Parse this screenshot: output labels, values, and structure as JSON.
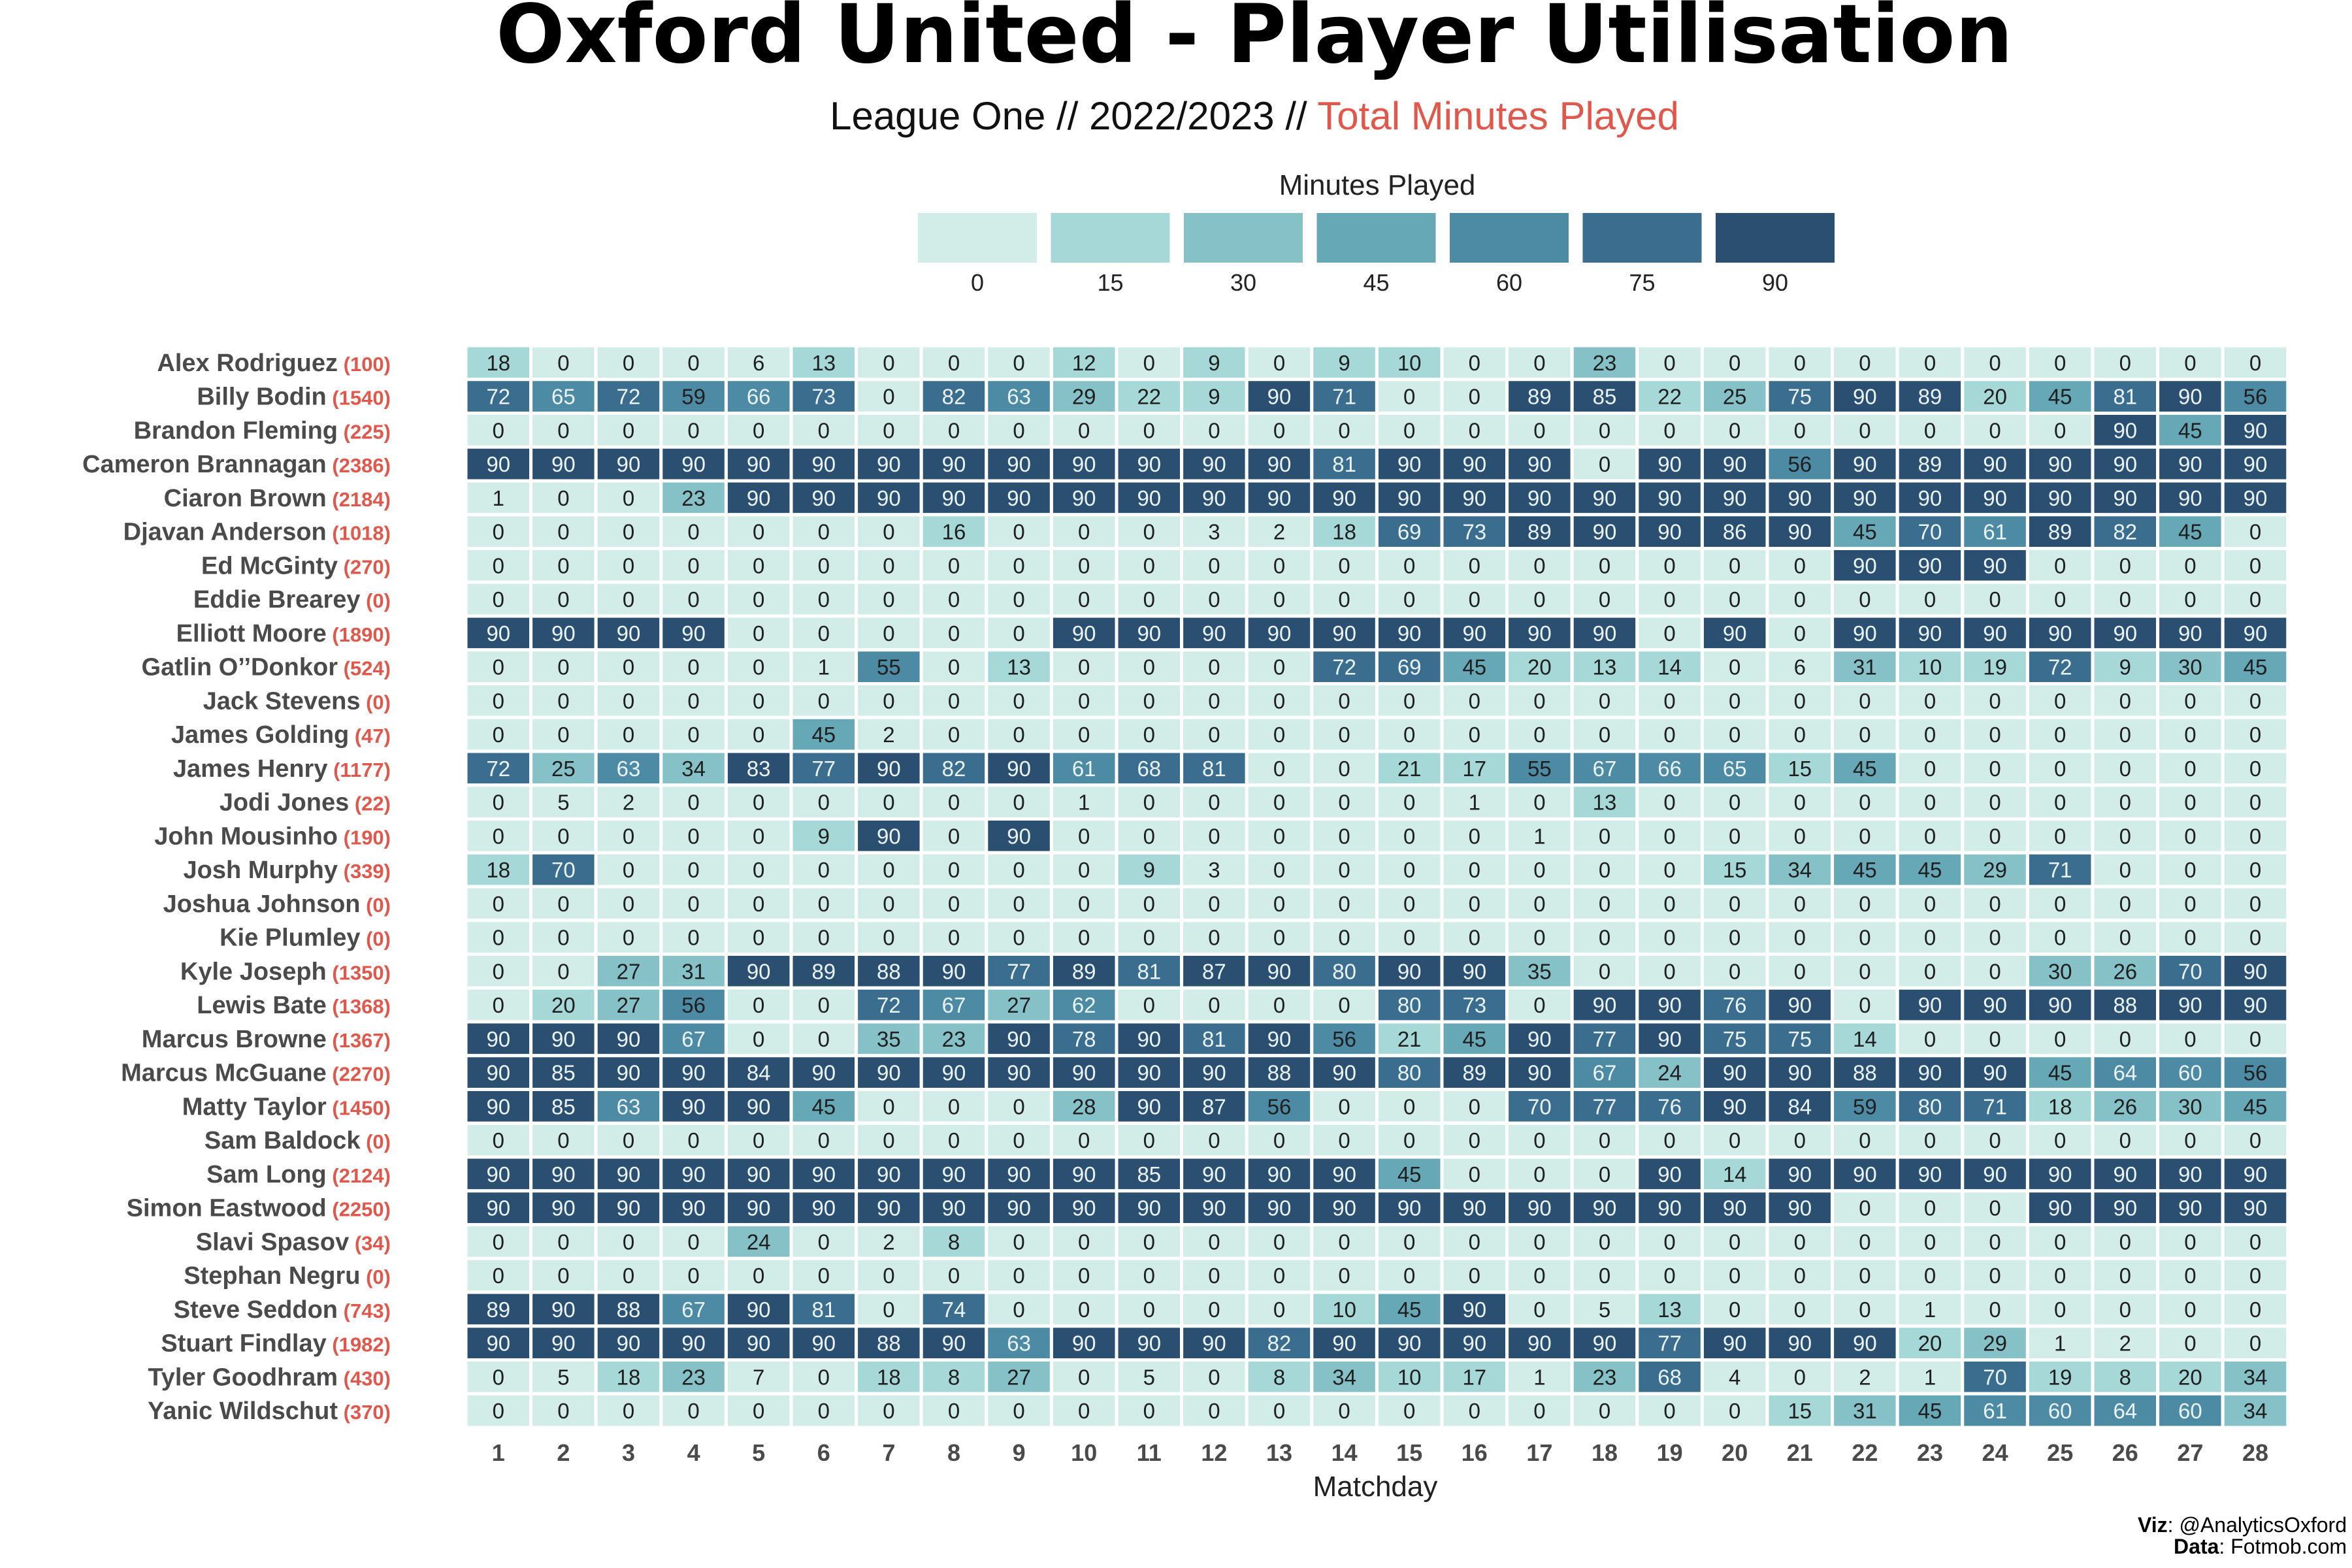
{
  "chart_data": {
    "type": "heatmap",
    "title": "Oxford United - Player Utilisation",
    "subtitle_main": "League One // 2022/2023 // ",
    "subtitle_highlight": "Total Minutes Played",
    "xlabel": "Matchday",
    "legend": {
      "title": "Minutes Played",
      "levels": [
        0,
        15,
        30,
        45,
        60,
        75,
        90
      ],
      "colors": [
        "#d2ece8",
        "#a7d8d8",
        "#86c1c8",
        "#67a8b7",
        "#4d8aa4",
        "#3a6d8e",
        "#2b4f70"
      ]
    },
    "x": [
      1,
      2,
      3,
      4,
      5,
      6,
      7,
      8,
      9,
      10,
      11,
      12,
      13,
      14,
      15,
      16,
      17,
      18,
      19,
      20,
      21,
      22,
      23,
      24,
      25,
      26,
      27,
      28
    ],
    "players": [
      {
        "name": "Alex Rodriguez",
        "total": "(100)",
        "minutes": [
          18,
          0,
          0,
          0,
          6,
          13,
          0,
          0,
          0,
          12,
          0,
          9,
          0,
          9,
          10,
          0,
          0,
          23,
          0,
          0,
          0,
          0,
          0,
          0,
          0,
          0,
          0,
          0
        ]
      },
      {
        "name": "Billy Bodin",
        "total": "(1540)",
        "minutes": [
          72,
          65,
          72,
          59,
          66,
          73,
          0,
          82,
          63,
          29,
          22,
          9,
          90,
          71,
          0,
          0,
          89,
          85,
          22,
          25,
          75,
          90,
          89,
          20,
          45,
          81,
          90,
          56
        ]
      },
      {
        "name": "Brandon Fleming",
        "total": "(225)",
        "minutes": [
          0,
          0,
          0,
          0,
          0,
          0,
          0,
          0,
          0,
          0,
          0,
          0,
          0,
          0,
          0,
          0,
          0,
          0,
          0,
          0,
          0,
          0,
          0,
          0,
          0,
          90,
          45,
          90
        ]
      },
      {
        "name": "Cameron Brannagan",
        "total": "(2386)",
        "minutes": [
          90,
          90,
          90,
          90,
          90,
          90,
          90,
          90,
          90,
          90,
          90,
          90,
          90,
          81,
          90,
          90,
          90,
          0,
          90,
          90,
          56,
          90,
          89,
          90,
          90,
          90,
          90,
          90
        ]
      },
      {
        "name": "Ciaron Brown",
        "total": "(2184)",
        "minutes": [
          1,
          0,
          0,
          23,
          90,
          90,
          90,
          90,
          90,
          90,
          90,
          90,
          90,
          90,
          90,
          90,
          90,
          90,
          90,
          90,
          90,
          90,
          90,
          90,
          90,
          90,
          90,
          90
        ]
      },
      {
        "name": "Djavan Anderson",
        "total": "(1018)",
        "minutes": [
          0,
          0,
          0,
          0,
          0,
          0,
          0,
          16,
          0,
          0,
          0,
          3,
          2,
          18,
          69,
          73,
          89,
          90,
          90,
          86,
          90,
          45,
          70,
          61,
          89,
          82,
          45,
          0
        ]
      },
      {
        "name": "Ed McGinty",
        "total": "(270)",
        "minutes": [
          0,
          0,
          0,
          0,
          0,
          0,
          0,
          0,
          0,
          0,
          0,
          0,
          0,
          0,
          0,
          0,
          0,
          0,
          0,
          0,
          0,
          90,
          90,
          90,
          0,
          0,
          0,
          0
        ]
      },
      {
        "name": "Eddie Brearey",
        "total": "(0)",
        "minutes": [
          0,
          0,
          0,
          0,
          0,
          0,
          0,
          0,
          0,
          0,
          0,
          0,
          0,
          0,
          0,
          0,
          0,
          0,
          0,
          0,
          0,
          0,
          0,
          0,
          0,
          0,
          0,
          0
        ]
      },
      {
        "name": "Elliott Moore",
        "total": "(1890)",
        "minutes": [
          90,
          90,
          90,
          90,
          0,
          0,
          0,
          0,
          0,
          90,
          90,
          90,
          90,
          90,
          90,
          90,
          90,
          90,
          0,
          90,
          0,
          90,
          90,
          90,
          90,
          90,
          90,
          90
        ]
      },
      {
        "name": "Gatlin O’’Donkor",
        "total": "(524)",
        "minutes": [
          0,
          0,
          0,
          0,
          0,
          1,
          55,
          0,
          13,
          0,
          0,
          0,
          0,
          72,
          69,
          45,
          20,
          13,
          14,
          0,
          6,
          31,
          10,
          19,
          72,
          9,
          30,
          45
        ]
      },
      {
        "name": "Jack Stevens",
        "total": "(0)",
        "minutes": [
          0,
          0,
          0,
          0,
          0,
          0,
          0,
          0,
          0,
          0,
          0,
          0,
          0,
          0,
          0,
          0,
          0,
          0,
          0,
          0,
          0,
          0,
          0,
          0,
          0,
          0,
          0,
          0
        ]
      },
      {
        "name": "James Golding",
        "total": "(47)",
        "minutes": [
          0,
          0,
          0,
          0,
          0,
          45,
          2,
          0,
          0,
          0,
          0,
          0,
          0,
          0,
          0,
          0,
          0,
          0,
          0,
          0,
          0,
          0,
          0,
          0,
          0,
          0,
          0,
          0
        ]
      },
      {
        "name": "James Henry",
        "total": "(1177)",
        "minutes": [
          72,
          25,
          63,
          34,
          83,
          77,
          90,
          82,
          90,
          61,
          68,
          81,
          0,
          0,
          21,
          17,
          55,
          67,
          66,
          65,
          15,
          45,
          0,
          0,
          0,
          0,
          0,
          0
        ]
      },
      {
        "name": "Jodi Jones",
        "total": "(22)",
        "minutes": [
          0,
          5,
          2,
          0,
          0,
          0,
          0,
          0,
          0,
          1,
          0,
          0,
          0,
          0,
          0,
          1,
          0,
          13,
          0,
          0,
          0,
          0,
          0,
          0,
          0,
          0,
          0,
          0
        ]
      },
      {
        "name": "John Mousinho",
        "total": "(190)",
        "minutes": [
          0,
          0,
          0,
          0,
          0,
          9,
          90,
          0,
          90,
          0,
          0,
          0,
          0,
          0,
          0,
          0,
          1,
          0,
          0,
          0,
          0,
          0,
          0,
          0,
          0,
          0,
          0,
          0
        ]
      },
      {
        "name": "Josh Murphy",
        "total": "(339)",
        "minutes": [
          18,
          70,
          0,
          0,
          0,
          0,
          0,
          0,
          0,
          0,
          9,
          3,
          0,
          0,
          0,
          0,
          0,
          0,
          0,
          15,
          34,
          45,
          45,
          29,
          71,
          0,
          0,
          0
        ]
      },
      {
        "name": "Joshua Johnson",
        "total": "(0)",
        "minutes": [
          0,
          0,
          0,
          0,
          0,
          0,
          0,
          0,
          0,
          0,
          0,
          0,
          0,
          0,
          0,
          0,
          0,
          0,
          0,
          0,
          0,
          0,
          0,
          0,
          0,
          0,
          0,
          0
        ]
      },
      {
        "name": "Kie Plumley",
        "total": "(0)",
        "minutes": [
          0,
          0,
          0,
          0,
          0,
          0,
          0,
          0,
          0,
          0,
          0,
          0,
          0,
          0,
          0,
          0,
          0,
          0,
          0,
          0,
          0,
          0,
          0,
          0,
          0,
          0,
          0,
          0
        ]
      },
      {
        "name": "Kyle Joseph",
        "total": "(1350)",
        "minutes": [
          0,
          0,
          27,
          31,
          90,
          89,
          88,
          90,
          77,
          89,
          81,
          87,
          90,
          80,
          90,
          90,
          35,
          0,
          0,
          0,
          0,
          0,
          0,
          0,
          30,
          26,
          70,
          90
        ]
      },
      {
        "name": "Lewis Bate",
        "total": "(1368)",
        "minutes": [
          0,
          20,
          27,
          56,
          0,
          0,
          72,
          67,
          27,
          62,
          0,
          0,
          0,
          0,
          80,
          73,
          0,
          90,
          90,
          76,
          90,
          0,
          90,
          90,
          90,
          88,
          90,
          90
        ]
      },
      {
        "name": "Marcus Browne",
        "total": "(1367)",
        "minutes": [
          90,
          90,
          90,
          67,
          0,
          0,
          35,
          23,
          90,
          78,
          90,
          81,
          90,
          56,
          21,
          45,
          90,
          77,
          90,
          75,
          75,
          14,
          0,
          0,
          0,
          0,
          0,
          0
        ]
      },
      {
        "name": "Marcus McGuane",
        "total": "(2270)",
        "minutes": [
          90,
          85,
          90,
          90,
          84,
          90,
          90,
          90,
          90,
          90,
          90,
          90,
          88,
          90,
          80,
          89,
          90,
          67,
          24,
          90,
          90,
          88,
          90,
          90,
          45,
          64,
          60,
          56
        ]
      },
      {
        "name": "Matty Taylor",
        "total": "(1450)",
        "minutes": [
          90,
          85,
          63,
          90,
          90,
          45,
          0,
          0,
          0,
          28,
          90,
          87,
          56,
          0,
          0,
          0,
          70,
          77,
          76,
          90,
          84,
          59,
          80,
          71,
          18,
          26,
          30,
          45
        ]
      },
      {
        "name": "Sam Baldock",
        "total": "(0)",
        "minutes": [
          0,
          0,
          0,
          0,
          0,
          0,
          0,
          0,
          0,
          0,
          0,
          0,
          0,
          0,
          0,
          0,
          0,
          0,
          0,
          0,
          0,
          0,
          0,
          0,
          0,
          0,
          0,
          0
        ]
      },
      {
        "name": "Sam Long",
        "total": "(2124)",
        "minutes": [
          90,
          90,
          90,
          90,
          90,
          90,
          90,
          90,
          90,
          90,
          85,
          90,
          90,
          90,
          45,
          0,
          0,
          0,
          90,
          14,
          90,
          90,
          90,
          90,
          90,
          90,
          90,
          90
        ]
      },
      {
        "name": "Simon Eastwood",
        "total": "(2250)",
        "minutes": [
          90,
          90,
          90,
          90,
          90,
          90,
          90,
          90,
          90,
          90,
          90,
          90,
          90,
          90,
          90,
          90,
          90,
          90,
          90,
          90,
          90,
          0,
          0,
          0,
          90,
          90,
          90,
          90
        ]
      },
      {
        "name": "Slavi Spasov",
        "total": "(34)",
        "minutes": [
          0,
          0,
          0,
          0,
          24,
          0,
          2,
          8,
          0,
          0,
          0,
          0,
          0,
          0,
          0,
          0,
          0,
          0,
          0,
          0,
          0,
          0,
          0,
          0,
          0,
          0,
          0,
          0
        ]
      },
      {
        "name": "Stephan Negru",
        "total": "(0)",
        "minutes": [
          0,
          0,
          0,
          0,
          0,
          0,
          0,
          0,
          0,
          0,
          0,
          0,
          0,
          0,
          0,
          0,
          0,
          0,
          0,
          0,
          0,
          0,
          0,
          0,
          0,
          0,
          0,
          0
        ]
      },
      {
        "name": "Steve Seddon",
        "total": "(743)",
        "minutes": [
          89,
          90,
          88,
          67,
          90,
          81,
          0,
          74,
          0,
          0,
          0,
          0,
          0,
          10,
          45,
          90,
          0,
          5,
          13,
          0,
          0,
          0,
          1,
          0,
          0,
          0,
          0,
          0
        ]
      },
      {
        "name": "Stuart Findlay",
        "total": "(1982)",
        "minutes": [
          90,
          90,
          90,
          90,
          90,
          90,
          88,
          90,
          63,
          90,
          90,
          90,
          82,
          90,
          90,
          90,
          90,
          90,
          77,
          90,
          90,
          90,
          20,
          29,
          1,
          2,
          0,
          0
        ]
      },
      {
        "name": "Tyler Goodhram",
        "total": "(430)",
        "minutes": [
          0,
          5,
          18,
          23,
          7,
          0,
          18,
          8,
          27,
          0,
          5,
          0,
          8,
          34,
          10,
          17,
          1,
          23,
          68,
          4,
          0,
          2,
          1,
          70,
          19,
          8,
          20,
          34
        ]
      },
      {
        "name": "Yanic Wildschut",
        "total": "(370)",
        "minutes": [
          0,
          0,
          0,
          0,
          0,
          0,
          0,
          0,
          0,
          0,
          0,
          0,
          0,
          0,
          0,
          0,
          0,
          0,
          0,
          0,
          15,
          31,
          45,
          61,
          60,
          64,
          60,
          34
        ]
      }
    ]
  },
  "credits": {
    "viz_label": "Viz",
    "viz_value": ": @AnalyticsOxford",
    "data_label": "Data",
    "data_value": ": Fotmob.com"
  }
}
